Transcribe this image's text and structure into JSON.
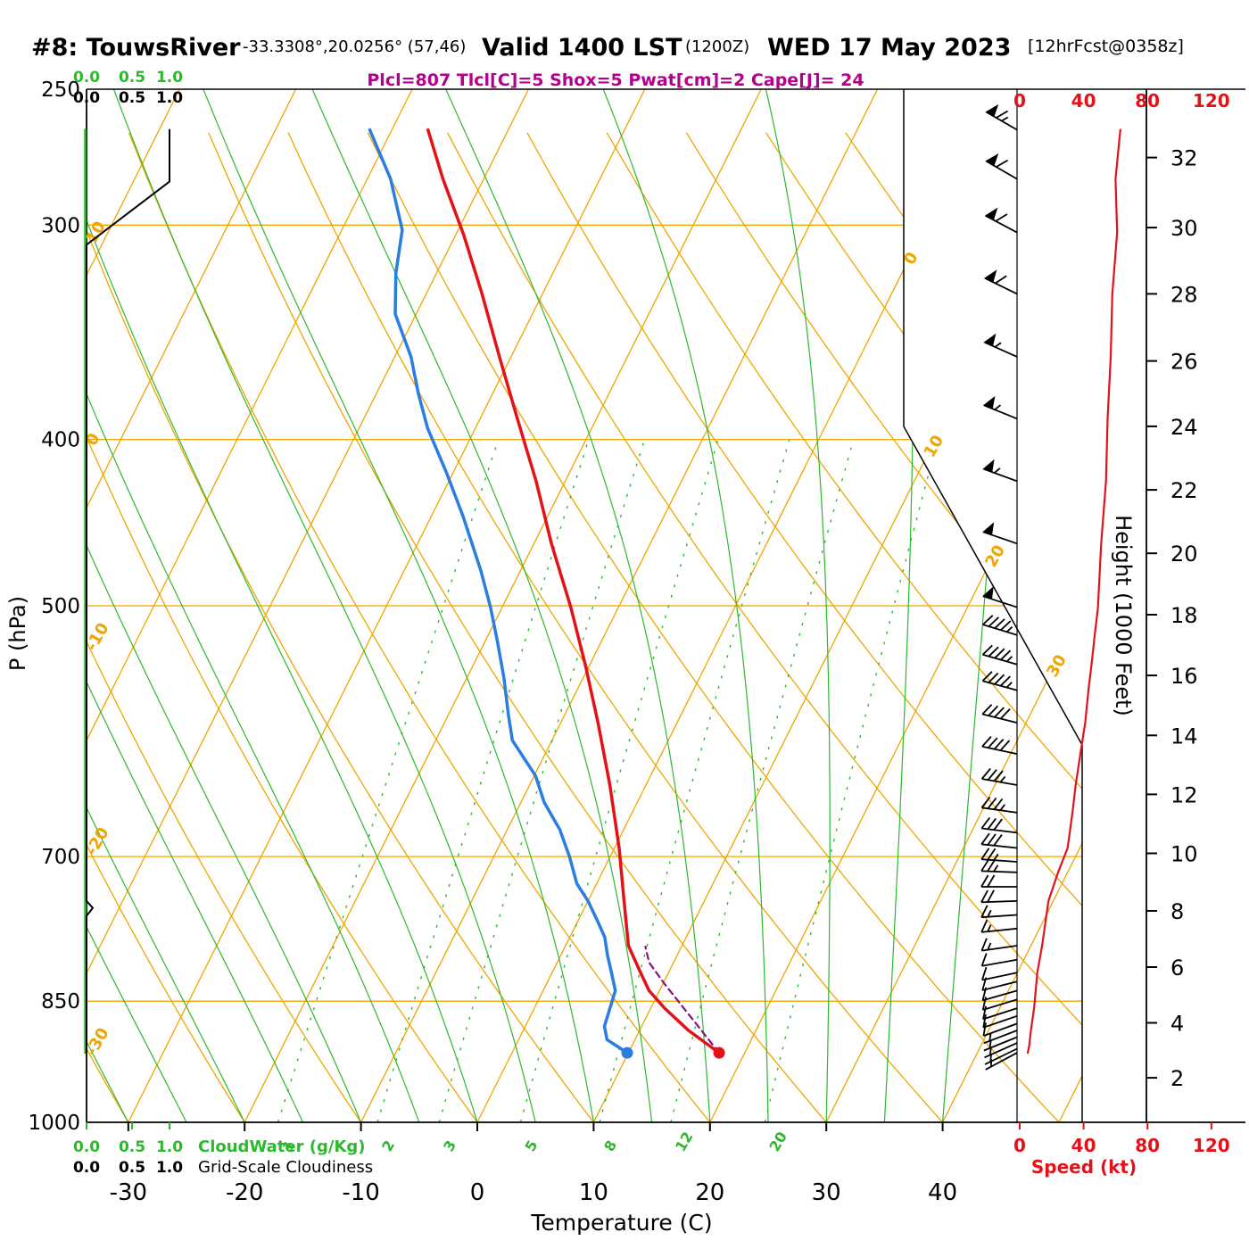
{
  "header": {
    "station": "#8: TouwsRiver",
    "coords": "-33.3308°,20.0256° (57,46)",
    "valid": "Valid 1400 LST",
    "valid_z": "(1200Z)",
    "valid_date": "WED 17 May 2023",
    "fcst": "[12hrFcst@0358z]",
    "params": "Plcl=807 Tlcl[C]=5 Shox=5 Pwat[cm]=2 Cape[J]= 24"
  },
  "axes": {
    "pressure": {
      "title": "P (hPa)",
      "ticks": [
        250,
        300,
        400,
        500,
        700,
        850,
        1000
      ]
    },
    "temperature": {
      "title": "Temperature (C)",
      "ticks": [
        -30,
        -20,
        -10,
        0,
        10,
        20,
        30,
        40
      ]
    },
    "height": {
      "title": "Height (1000 Feet)"
    },
    "speed": {
      "title": "Speed (kt)",
      "ticks": [
        0,
        40,
        80,
        120
      ]
    },
    "cloudwater": {
      "title": "CloudWater (g/Kg)",
      "scale": [
        "0.0",
        "0.5",
        "1.0"
      ]
    },
    "cloudiness": {
      "title": "Grid-Scale Cloudiness",
      "scale": [
        "0.0",
        "0.5",
        "1.0"
      ]
    }
  },
  "chart_data": {
    "type": "skewt",
    "isobars": [
      300,
      400,
      500,
      700,
      850,
      1000
    ],
    "isotherm_min": -90,
    "isotherm_max": 50,
    "isotherm_step": 10,
    "dry_adiabat_min": -40,
    "dry_adiabat_max": 170,
    "dry_adiabat_step": 10,
    "dry_adiabat_edge_labels": [
      10,
      0,
      -10,
      -20,
      -30
    ],
    "isotherm_edge_labels": [
      0,
      10,
      20,
      30
    ],
    "moist_adiabats": [
      -50,
      -45,
      -40,
      -35,
      -30,
      -25,
      -20,
      -15,
      -10,
      -5,
      0,
      5,
      10,
      15,
      20,
      25,
      30,
      35,
      40
    ],
    "mixing_ratios": [
      1,
      2,
      3,
      5,
      8,
      12,
      20
    ],
    "height_ticks": [
      [
        2,
        942
      ],
      [
        4,
        875
      ],
      [
        6,
        812
      ],
      [
        8,
        753
      ],
      [
        10,
        697
      ],
      [
        12,
        644
      ],
      [
        14,
        595
      ],
      [
        16,
        549
      ],
      [
        18,
        506
      ],
      [
        20,
        466
      ],
      [
        22,
        428
      ],
      [
        24,
        393
      ],
      [
        26,
        360
      ],
      [
        28,
        329
      ],
      [
        30,
        301
      ],
      [
        32,
        274
      ]
    ],
    "temperature_profile": [
      [
        911,
        17.8
      ],
      [
        884,
        14.2
      ],
      [
        858,
        11.2
      ],
      [
        838,
        9.1
      ],
      [
        818,
        7.6
      ],
      [
        789,
        5.4
      ],
      [
        743,
        3.1
      ],
      [
        692,
        0.4
      ],
      [
        636,
        -3.1
      ],
      [
        585,
        -6.8
      ],
      [
        541,
        -10.4
      ],
      [
        501,
        -14.1
      ],
      [
        460,
        -18.5
      ],
      [
        423,
        -22.5
      ],
      [
        389,
        -26.8
      ],
      [
        358,
        -31.0
      ],
      [
        329,
        -35.2
      ],
      [
        304,
        -39.3
      ],
      [
        282,
        -43.5
      ],
      [
        264,
        -46.9
      ]
    ],
    "dewpoint_profile": [
      [
        911,
        9.9
      ],
      [
        895,
        7.6
      ],
      [
        879,
        6.8
      ],
      [
        858,
        6.5
      ],
      [
        838,
        6.2
      ],
      [
        818,
        5.1
      ],
      [
        799,
        4.0
      ],
      [
        780,
        3.0
      ],
      [
        761,
        1.5
      ],
      [
        743,
        0.0
      ],
      [
        726,
        -1.7
      ],
      [
        700,
        -3.5
      ],
      [
        675,
        -5.5
      ],
      [
        651,
        -8.0
      ],
      [
        628,
        -9.9
      ],
      [
        599,
        -13.4
      ],
      [
        578,
        -14.9
      ],
      [
        551,
        -16.8
      ],
      [
        525,
        -18.9
      ],
      [
        501,
        -21.0
      ],
      [
        477,
        -23.4
      ],
      [
        444,
        -27.2
      ],
      [
        418,
        -30.6
      ],
      [
        394,
        -34.1
      ],
      [
        376,
        -36.4
      ],
      [
        358,
        -38.6
      ],
      [
        338,
        -41.8
      ],
      [
        320,
        -43.5
      ],
      [
        302,
        -44.8
      ],
      [
        282,
        -48.0
      ],
      [
        264,
        -51.9
      ]
    ],
    "parcel_path": [
      [
        911,
        17.8
      ],
      [
        870,
        14.0
      ],
      [
        830,
        10.1
      ],
      [
        807,
        7.9
      ],
      [
        790,
        6.9
      ]
    ],
    "wind_speed_profile": [
      [
        911,
        5
      ],
      [
        902,
        6
      ],
      [
        884,
        7
      ],
      [
        858,
        9
      ],
      [
        838,
        10
      ],
      [
        818,
        11
      ],
      [
        789,
        14
      ],
      [
        743,
        18
      ],
      [
        715,
        24
      ],
      [
        692,
        30
      ],
      [
        660,
        33
      ],
      [
        636,
        35
      ],
      [
        610,
        38
      ],
      [
        585,
        41
      ],
      [
        560,
        43
      ],
      [
        541,
        45
      ],
      [
        520,
        47
      ],
      [
        501,
        49
      ],
      [
        460,
        51
      ],
      [
        423,
        54
      ],
      [
        389,
        55
      ],
      [
        358,
        57
      ],
      [
        329,
        58
      ],
      [
        303,
        61
      ],
      [
        282,
        60
      ],
      [
        264,
        63
      ]
    ],
    "wind_barbs": [
      [
        264,
        63,
        300
      ],
      [
        282,
        60,
        300
      ],
      [
        303,
        61,
        298
      ],
      [
        329,
        58,
        296
      ],
      [
        358,
        57,
        294
      ],
      [
        389,
        55,
        292
      ],
      [
        423,
        54,
        290
      ],
      [
        460,
        51,
        289
      ],
      [
        501,
        49,
        288
      ],
      [
        520,
        47,
        287
      ],
      [
        541,
        45,
        286
      ],
      [
        560,
        43,
        285
      ],
      [
        585,
        41,
        284
      ],
      [
        610,
        38,
        282
      ],
      [
        636,
        35,
        280
      ],
      [
        660,
        33,
        278
      ],
      [
        678,
        31,
        277
      ],
      [
        692,
        30,
        276
      ],
      [
        705,
        27,
        274
      ],
      [
        715,
        24,
        272
      ],
      [
        729,
        21,
        270
      ],
      [
        743,
        18,
        268
      ],
      [
        757,
        16,
        266
      ],
      [
        771,
        15,
        264
      ],
      [
        789,
        14,
        262
      ],
      [
        804,
        12,
        260
      ],
      [
        818,
        11,
        258
      ],
      [
        828,
        10,
        256
      ],
      [
        838,
        10,
        254
      ],
      [
        848,
        9,
        253
      ],
      [
        858,
        9,
        252
      ],
      [
        867,
        8,
        251
      ],
      [
        876,
        8,
        250
      ],
      [
        884,
        7,
        249
      ],
      [
        892,
        6,
        248
      ],
      [
        899,
        6,
        246
      ],
      [
        906,
        5,
        244
      ],
      [
        911,
        5,
        242
      ]
    ],
    "cloudiness_profile": [
      [
        911,
        0
      ],
      [
        758,
        0
      ],
      [
        750,
        0.075
      ],
      [
        743,
        0
      ],
      [
        308,
        0
      ],
      [
        283,
        1
      ],
      [
        264,
        1
      ]
    ],
    "cloud_water_profile": [
      [
        911,
        0
      ],
      [
        264,
        0
      ]
    ],
    "colors": {
      "grid": "#f0a500",
      "green": "#2eb82e",
      "temp": "#e31219",
      "dew": "#2a7de1",
      "speed": "#e31219",
      "parcel": "#8a0f8a",
      "params": "#b4008c",
      "black": "#000000"
    }
  }
}
